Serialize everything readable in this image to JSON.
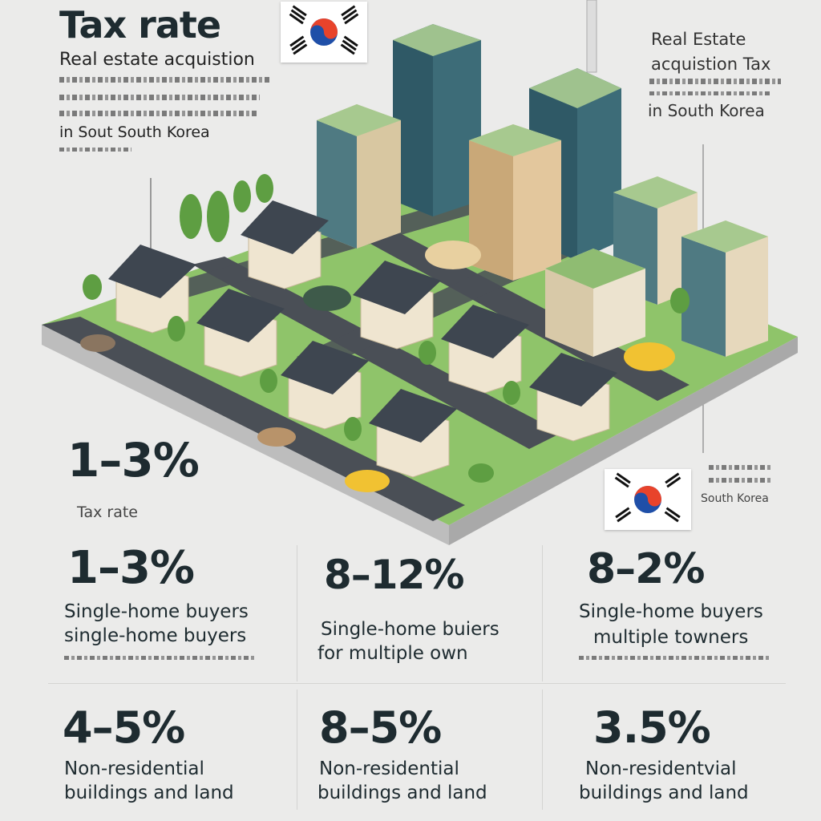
{
  "header": {
    "title": "Tax rate",
    "subtitle": "Real estate acquistion",
    "note_end": "in Sout South Korea"
  },
  "right_header": {
    "heading_line1": "Real Estate",
    "heading_line2": "acquistion Tax",
    "sub": "in South Korea"
  },
  "flag_label": "South Korea",
  "hero": {
    "percent": "1–3%",
    "label": "Tax rate"
  },
  "rows": [
    [
      {
        "percent": "1–3%",
        "line1": "Single-home buyers",
        "line2": "single-home buyers"
      },
      {
        "percent": "8–12%",
        "line1": "Single-home buiers",
        "line2": "for multiple own"
      },
      {
        "percent": "8–2%",
        "line1": "Single-home buyers",
        "line2": "multiple towners"
      }
    ],
    [
      {
        "percent": "4–5%",
        "line1": "Non-residential",
        "line2": "buildings and land"
      },
      {
        "percent": "8–5%",
        "line1": "Non-residential",
        "line2": "buildings and land"
      },
      {
        "percent": "3.5%",
        "line1": "Non-residentvial",
        "line2": "buildings and land"
      }
    ]
  ],
  "colors": {
    "background": "#ebebea",
    "grass": "#8fc46a",
    "road": "#4a4f56",
    "roof": "#3e4650",
    "wall": "#efe5d0",
    "taeguk_red": "#e8432b",
    "taeguk_blue": "#1f4fa8"
  }
}
